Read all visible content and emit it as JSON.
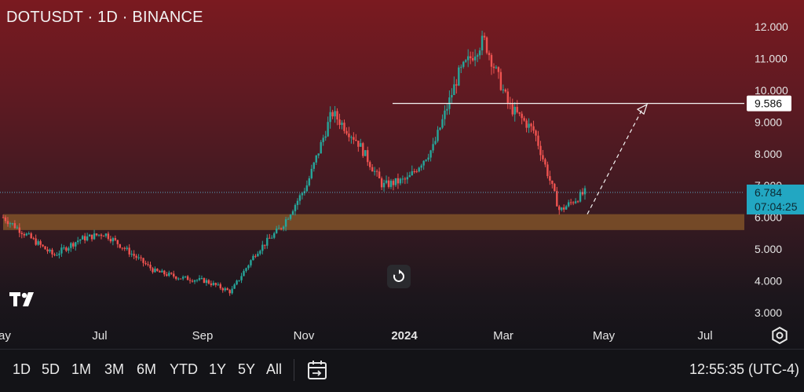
{
  "header": {
    "symbol_title": "DOTUSDT · 1D · BINANCE"
  },
  "price_axis": {
    "ticks": [
      "12.000",
      "11.000",
      "10.000",
      "9.000",
      "8.000",
      "7.000",
      "6.000",
      "5.000",
      "4.000",
      "3.000"
    ],
    "marker_resistance": "9.586",
    "marker_current": "6.784",
    "marker_countdown": "07:04:25"
  },
  "time_axis": {
    "labels": [
      "ay",
      "Jul",
      "Sep",
      "Nov",
      "2024",
      "Mar",
      "May",
      "Jul"
    ]
  },
  "bottom_bar": {
    "ranges": [
      "1D",
      "5D",
      "1M",
      "3M",
      "6M",
      "YTD",
      "1Y",
      "5Y",
      "All"
    ],
    "clock": "12:55:35 (UTC-4)"
  },
  "colors": {
    "up": "#26a69a",
    "down": "#ef5350",
    "zone": "#8a5a2a",
    "current_label": "#22a7c2"
  },
  "icons": {
    "logo": "tradingview-logo",
    "reset": "reset-icon",
    "settings": "gear-icon",
    "date_range": "calendar-range-icon"
  },
  "chart_data": {
    "type": "candlestick",
    "symbol": "DOTUSDT",
    "interval": "1D",
    "exchange": "BINANCE",
    "ylim": [
      3.0,
      12.3
    ],
    "x_labels": [
      "ay",
      "Jul",
      "Sep",
      "Nov",
      "2024",
      "Mar",
      "May",
      "Jul"
    ],
    "close_path": [
      {
        "t": "ay",
        "v": 6.0
      },
      {
        "t": "Jun",
        "v": 5.4
      },
      {
        "t": "Jun-mid",
        "v": 4.8
      },
      {
        "t": "Jul",
        "v": 5.3
      },
      {
        "t": "Jul-mid",
        "v": 5.5
      },
      {
        "t": "Aug",
        "v": 4.9
      },
      {
        "t": "Sep",
        "v": 4.3
      },
      {
        "t": "Sep-mid",
        "v": 4.1
      },
      {
        "t": "Oct",
        "v": 4.0
      },
      {
        "t": "Oct-mid",
        "v": 3.65
      },
      {
        "t": "Nov",
        "v": 4.9
      },
      {
        "t": "Nov-mid",
        "v": 5.7
      },
      {
        "t": "Dec",
        "v": 7.0
      },
      {
        "t": "Dec-end",
        "v": 9.3
      },
      {
        "t": "2024",
        "v": 8.4
      },
      {
        "t": "Jan-mid",
        "v": 7.0
      },
      {
        "t": "Feb",
        "v": 7.2
      },
      {
        "t": "Feb-mid",
        "v": 8.2
      },
      {
        "t": "Mar",
        "v": 10.5
      },
      {
        "t": "Mar-mid",
        "v": 11.6
      },
      {
        "t": "Mar-end",
        "v": 9.5
      },
      {
        "t": "Apr",
        "v": 8.7
      },
      {
        "t": "Apr-mid",
        "v": 6.2
      },
      {
        "t": "Apr-now",
        "v": 6.784
      }
    ],
    "current_price": 6.784,
    "resistance_level": 9.586,
    "support_zone": [
      5.6,
      6.1
    ],
    "projection": {
      "from": 6.1,
      "to": 9.55
    }
  }
}
